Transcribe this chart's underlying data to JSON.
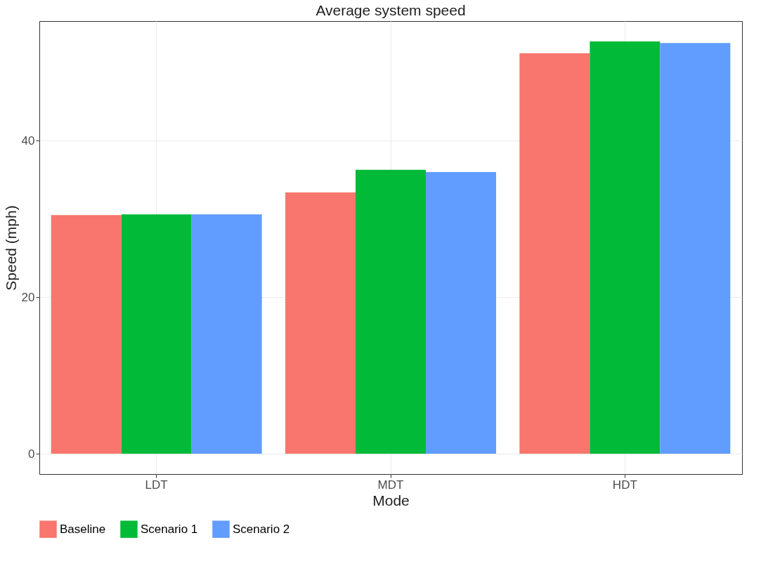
{
  "chart_data": {
    "type": "bar",
    "title": "Average system speed",
    "xlabel": "Mode",
    "ylabel": "Speed (mph)",
    "categories": [
      "LDT",
      "MDT",
      "HDT"
    ],
    "series": [
      {
        "name": "Baseline",
        "color": "#f8766d",
        "values": [
          30.5,
          33.4,
          51.2
        ]
      },
      {
        "name": "Scenario 1",
        "color": "#00ba38",
        "values": [
          30.6,
          36.3,
          52.7
        ]
      },
      {
        "name": "Scenario 2",
        "color": "#619cff",
        "values": [
          30.6,
          36.0,
          52.5
        ]
      }
    ],
    "ylim": [
      -2.6,
      55.3
    ],
    "yticks": [
      0,
      20,
      40
    ],
    "grid": true,
    "legend": "bottom"
  }
}
